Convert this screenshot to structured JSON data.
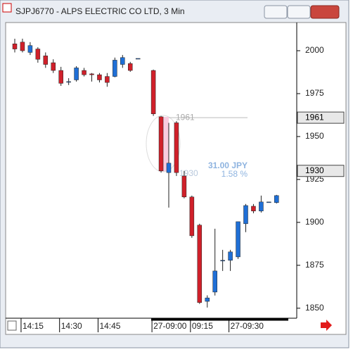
{
  "window_title": "SJPJ6770 - ALPS ELECTRIC CO LTD, 3 Min",
  "chart_data": {
    "type": "candlestick",
    "categories": [
      null,
      "14:15",
      null,
      null,
      null,
      null,
      "14:30",
      null,
      null,
      null,
      null,
      "14:45",
      null,
      null,
      null,
      null,
      null,
      null,
      "27-09:00",
      null,
      null,
      null,
      null,
      "09:15",
      null,
      null,
      null,
      null,
      "27-09:30",
      null,
      null,
      null,
      null,
      null,
      null
    ],
    "open": [
      2004,
      2005,
      1999,
      2001,
      1997,
      1993,
      1988.5,
      1982,
      1983,
      1988.5,
      1986.5,
      1986,
      1985,
      1985,
      1992,
      1992.5,
      1995.5,
      null,
      1988.5,
      1961.5,
      1929,
      1958,
      1927,
      1914.8,
      1898.4,
      1854,
      1859.4,
      1877.9,
      1877.9,
      1879.9,
      1899.2,
      1909.4,
      1906.6,
      1911.9,
      1911.5
    ],
    "high": [
      2007,
      2007,
      2005,
      2002,
      1999,
      1995,
      1990.6,
      1984,
      1991,
      1990,
      1987,
      1987,
      1987,
      1996,
      1997.5,
      1993.5,
      1995.5,
      null,
      1989,
      1962,
      1958,
      1959,
      1930,
      1915.6,
      1899.2,
      1857.5,
      1896.3,
      1884,
      1884,
      1900.4,
      1910.7,
      1910.7,
      1915.6,
      1911.9,
      1916
    ],
    "low": [
      1999,
      1999,
      1997.5,
      1993,
      1990,
      1987,
      1979.5,
      1980,
      1982,
      1985,
      1982,
      1981.5,
      1979,
      1984.5,
      1990,
      1987.7,
      1995.5,
      null,
      1962,
      1929,
      1908.6,
      1927,
      1914,
      1891,
      1852.5,
      1850.4,
      1857.4,
      1871.7,
      1871.7,
      1878.7,
      1894.3,
      1905.3,
      1905.7,
      1911.9,
      1911
    ],
    "close": [
      2001,
      2000,
      2003,
      1995,
      1992,
      1988.5,
      1981,
      1982,
      1990,
      1986,
      1986,
      1983,
      1981.5,
      1994.5,
      1996,
      1988.5,
      1995.5,
      null,
      1963.2,
      1930,
      1934.5,
      1929,
      1914.8,
      1892.2,
      1853.3,
      1856,
      1871.7,
      1877.9,
      1882.8,
      1900.4,
      1909.8,
      1906.6,
      1911.9,
      1911.9,
      1915.6
    ],
    "up_color": "#1f6fd6",
    "down_color": "#d0202a",
    "ylim": [
      1845,
      2016
    ],
    "yticks": [
      1850,
      1875,
      1900,
      1925,
      1950,
      1975,
      2000
    ],
    "markers": [
      1961,
      1930
    ],
    "measure": {
      "change": "31.00  JPY",
      "percent": "1.58 %"
    }
  }
}
